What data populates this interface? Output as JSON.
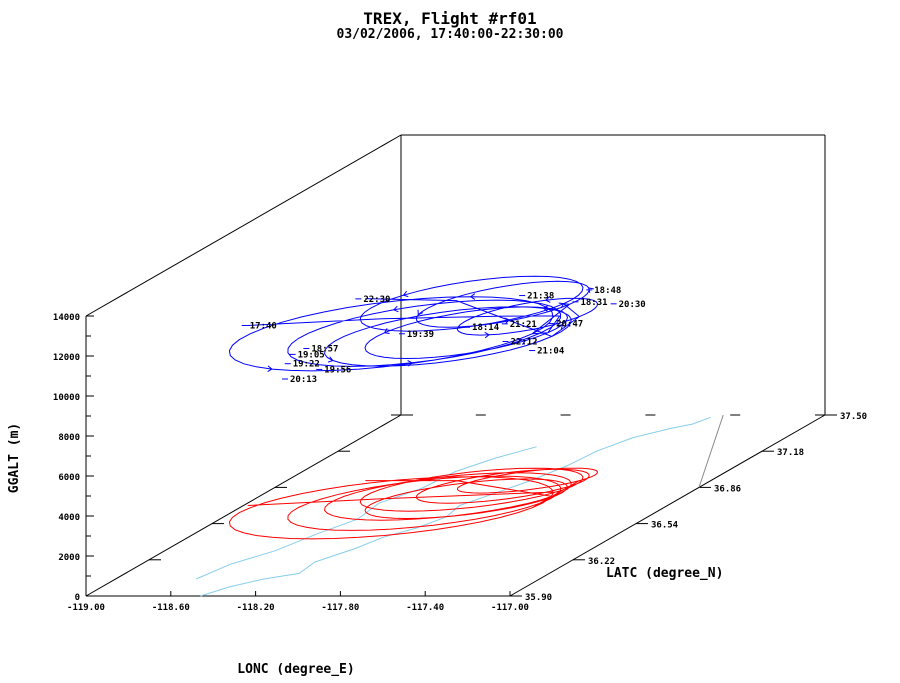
{
  "chart_data": {
    "type": "line",
    "title": "TREX, Flight #rf01",
    "subtitle": "03/02/2006, 17:40:00-22:30:00",
    "xlabel": "LONC (degree_E)",
    "ylabel": "LATC (degree_N)",
    "zlabel": "GGALT (m)",
    "xlim": [
      -119.0,
      -117.0
    ],
    "ylim": [
      35.9,
      37.5
    ],
    "zlim": [
      0,
      14000
    ],
    "x_ticks": [
      "-119.00",
      "-118.60",
      "-118.20",
      "-117.80",
      "-117.40",
      "-117.00"
    ],
    "y_ticks": [
      "35.90",
      "36.22",
      "36.54",
      "36.86",
      "37.18",
      "37.50"
    ],
    "z_ticks": [
      "0",
      "2000",
      "4000",
      "6000",
      "8000",
      "10000",
      "12000",
      "14000"
    ],
    "series_colors": {
      "track": "#0000ff",
      "ground_track": "#ff0000",
      "coastline": "#87ceeb"
    },
    "time_labels": [
      {
        "text": "17:40",
        "lon": -118.98,
        "lat": 36.7,
        "alt": 9000
      },
      {
        "text": "22:30",
        "lon": -118.63,
        "lat": 36.9,
        "alt": 9200
      },
      {
        "text": "21:38",
        "lon": -117.95,
        "lat": 37.0,
        "alt": 8800
      },
      {
        "text": "18:48",
        "lon": -117.68,
        "lat": 37.05,
        "alt": 8800
      },
      {
        "text": "18:31",
        "lon": -117.68,
        "lat": 36.98,
        "alt": 8600
      },
      {
        "text": "20:30",
        "lon": -117.5,
        "lat": 36.98,
        "alt": 8500
      },
      {
        "text": "19:39",
        "lon": -118.22,
        "lat": 36.68,
        "alt": 8700
      },
      {
        "text": "18:14",
        "lon": -117.95,
        "lat": 36.72,
        "alt": 8800
      },
      {
        "text": "21:21",
        "lon": -117.8,
        "lat": 36.75,
        "alt": 8800
      },
      {
        "text": "20:47",
        "lon": -117.6,
        "lat": 36.77,
        "alt": 8700
      },
      {
        "text": "22:12",
        "lon": -117.75,
        "lat": 36.7,
        "alt": 8200
      },
      {
        "text": "18:57",
        "lon": -118.55,
        "lat": 36.55,
        "alt": 8700
      },
      {
        "text": "19:05",
        "lon": -118.55,
        "lat": 36.48,
        "alt": 8800
      },
      {
        "text": "21:04",
        "lon": -117.55,
        "lat": 36.62,
        "alt": 8200
      },
      {
        "text": "19:22",
        "lon": -118.48,
        "lat": 36.38,
        "alt": 8900
      },
      {
        "text": "19:56",
        "lon": -118.35,
        "lat": 36.4,
        "alt": 8500
      },
      {
        "text": "20:13",
        "lon": -118.4,
        "lat": 36.28,
        "alt": 8700
      }
    ]
  }
}
